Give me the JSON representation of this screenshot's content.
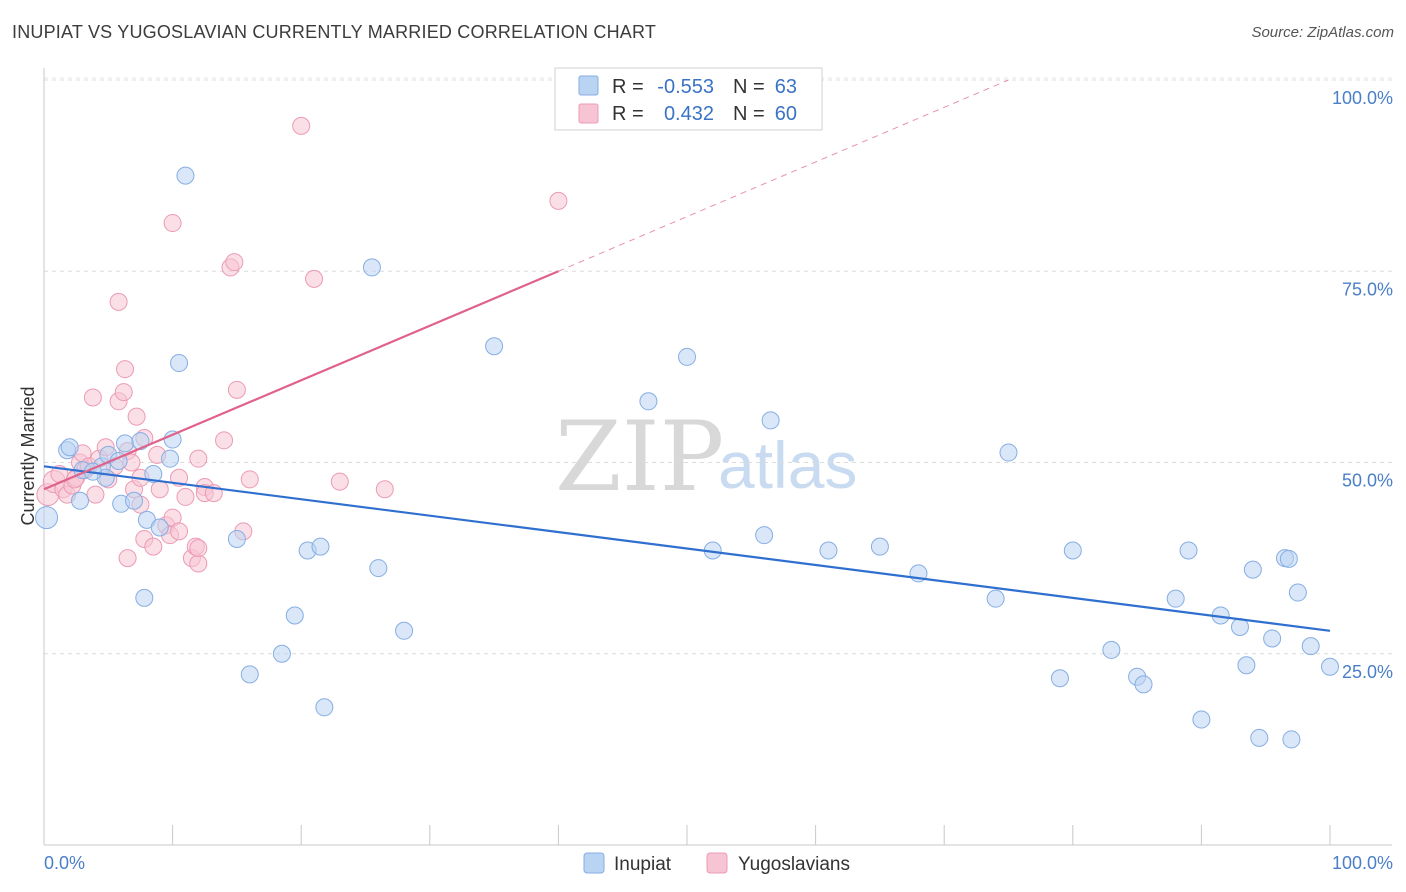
{
  "header": {
    "title": "INUPIAT VS YUGOSLAVIAN CURRENTLY MARRIED CORRELATION CHART",
    "source": "Source: ZipAtlas.com"
  },
  "watermark": {
    "zip": "ZIP",
    "atlas": "atlas"
  },
  "stats": {
    "inupiat": {
      "r_label": "R =",
      "r_value": "-0.553",
      "n_label": "N =",
      "n_value": "63"
    },
    "yugoslavians": {
      "r_label": "R =",
      "r_value": "0.432",
      "n_label": "N =",
      "n_value": "60"
    }
  },
  "chart_data": {
    "type": "scatter",
    "title": "INUPIAT VS YUGOSLAVIAN CURRENTLY MARRIED CORRELATION CHART",
    "xlabel": "",
    "ylabel": "Currently Married",
    "xlim": [
      0,
      100
    ],
    "ylim": [
      0,
      100
    ],
    "x_tick_labels": {
      "min": "0.0%",
      "max": "100.0%"
    },
    "y_ticks": [
      {
        "value": 25,
        "label": "25.0%"
      },
      {
        "value": 50,
        "label": "50.0%"
      },
      {
        "value": 75,
        "label": "75.0%"
      },
      {
        "value": 100,
        "label": "100.0%"
      }
    ],
    "legend": [
      "Inupiat",
      "Yugoslavians"
    ],
    "colors": {
      "inupiat_fill": "#b9d3f2",
      "inupiat_stroke": "#86aee3",
      "inupiat_line": "#2f6fcf",
      "yugo_fill": "#f7c4d4",
      "yugo_stroke": "#ec9bb5",
      "yugo_line": "#e0628a"
    },
    "series": [
      {
        "name": "Inupiat",
        "trend": {
          "x0": 0,
          "y0": 49.5,
          "x1": 100,
          "y1": 28.0
        },
        "points": [
          [
            0.2,
            42.8
          ],
          [
            1.8,
            51.6
          ],
          [
            2.0,
            52.0
          ],
          [
            3.0,
            49.0
          ],
          [
            2.8,
            45.0
          ],
          [
            4.5,
            49.5
          ],
          [
            5.0,
            51.0
          ],
          [
            5.8,
            50.2
          ],
          [
            6.3,
            52.5
          ],
          [
            4.8,
            48.0
          ],
          [
            6.0,
            44.6
          ],
          [
            7.0,
            45.0
          ],
          [
            7.5,
            52.8
          ],
          [
            8.0,
            42.5
          ],
          [
            9.0,
            41.5
          ],
          [
            7.8,
            32.3
          ],
          [
            8.5,
            48.5
          ],
          [
            10.0,
            53.0
          ],
          [
            9.8,
            50.5
          ],
          [
            11.0,
            87.5
          ],
          [
            10.5,
            63.0
          ],
          [
            15.0,
            40.0
          ],
          [
            16.0,
            22.3
          ],
          [
            18.5,
            25.0
          ],
          [
            19.5,
            30.0
          ],
          [
            20.5,
            38.5
          ],
          [
            21.5,
            39.0
          ],
          [
            21.8,
            18.0
          ],
          [
            25.5,
            75.5
          ],
          [
            26.0,
            36.2
          ],
          [
            28.0,
            28.0
          ],
          [
            35.0,
            65.2
          ],
          [
            47.0,
            58.0
          ],
          [
            50.0,
            63.8
          ],
          [
            52.0,
            38.5
          ],
          [
            56.0,
            40.5
          ],
          [
            56.5,
            55.5
          ],
          [
            61.0,
            38.5
          ],
          [
            65.0,
            39.0
          ],
          [
            68.0,
            35.5
          ],
          [
            74.0,
            32.2
          ],
          [
            75.0,
            51.3
          ],
          [
            79.0,
            21.8
          ],
          [
            80.0,
            38.5
          ],
          [
            83.0,
            25.5
          ],
          [
            85.0,
            22.0
          ],
          [
            85.5,
            21.0
          ],
          [
            88.0,
            32.2
          ],
          [
            89.0,
            38.5
          ],
          [
            90.0,
            16.4
          ],
          [
            91.5,
            30.0
          ],
          [
            93.0,
            28.5
          ],
          [
            93.5,
            23.5
          ],
          [
            94.0,
            36.0
          ],
          [
            94.5,
            14.0
          ],
          [
            95.5,
            27.0
          ],
          [
            96.5,
            37.5
          ],
          [
            96.8,
            37.4
          ],
          [
            97.0,
            13.8
          ],
          [
            97.5,
            33.0
          ],
          [
            98.5,
            26.0
          ],
          [
            100.0,
            23.3
          ],
          [
            3.8,
            48.8
          ]
        ]
      },
      {
        "name": "Yugoslavians",
        "trend": {
          "x0": 0,
          "y0": 46.5,
          "x1": 40,
          "y1": 75.0,
          "dash_to_x": 75,
          "dash_to_y": 100
        },
        "points": [
          [
            0.3,
            45.8
          ],
          [
            0.8,
            47.5
          ],
          [
            1.2,
            48.5
          ],
          [
            1.5,
            46.5
          ],
          [
            1.8,
            45.8
          ],
          [
            2.2,
            47.0
          ],
          [
            2.5,
            48.0
          ],
          [
            2.4,
            47.8
          ],
          [
            2.8,
            50.0
          ],
          [
            3.0,
            51.2
          ],
          [
            3.2,
            49.0
          ],
          [
            3.5,
            49.5
          ],
          [
            3.8,
            58.5
          ],
          [
            4.0,
            45.8
          ],
          [
            4.3,
            50.5
          ],
          [
            4.8,
            52.0
          ],
          [
            5.0,
            47.8
          ],
          [
            5.5,
            49.5
          ],
          [
            5.8,
            58.0
          ],
          [
            6.2,
            59.2
          ],
          [
            6.5,
            51.5
          ],
          [
            6.8,
            50.0
          ],
          [
            7.2,
            56.0
          ],
          [
            7.5,
            44.5
          ],
          [
            7.8,
            53.2
          ],
          [
            5.8,
            71.0
          ],
          [
            6.3,
            62.2
          ],
          [
            6.5,
            37.5
          ],
          [
            7.0,
            46.5
          ],
          [
            7.5,
            48.0
          ],
          [
            7.8,
            40.0
          ],
          [
            8.5,
            39.0
          ],
          [
            8.8,
            51.0
          ],
          [
            9.0,
            46.5
          ],
          [
            9.5,
            41.8
          ],
          [
            9.8,
            40.5
          ],
          [
            10.0,
            42.8
          ],
          [
            10.5,
            48.0
          ],
          [
            11.0,
            45.5
          ],
          [
            11.5,
            37.5
          ],
          [
            12.0,
            50.5
          ],
          [
            12.5,
            46.8
          ],
          [
            10.0,
            81.3
          ],
          [
            10.5,
            41.0
          ],
          [
            12.0,
            36.8
          ],
          [
            12.5,
            46.0
          ],
          [
            11.8,
            39.0
          ],
          [
            12.0,
            38.8
          ],
          [
            14.0,
            52.9
          ],
          [
            13.2,
            46.0
          ],
          [
            14.5,
            75.5
          ],
          [
            14.8,
            76.2
          ],
          [
            15.0,
            59.5
          ],
          [
            15.5,
            41.0
          ],
          [
            16.0,
            47.8
          ],
          [
            20.0,
            94.0
          ],
          [
            21.0,
            74.0
          ],
          [
            23.0,
            47.5
          ],
          [
            26.5,
            46.5
          ],
          [
            40.0,
            84.2
          ]
        ]
      }
    ]
  }
}
